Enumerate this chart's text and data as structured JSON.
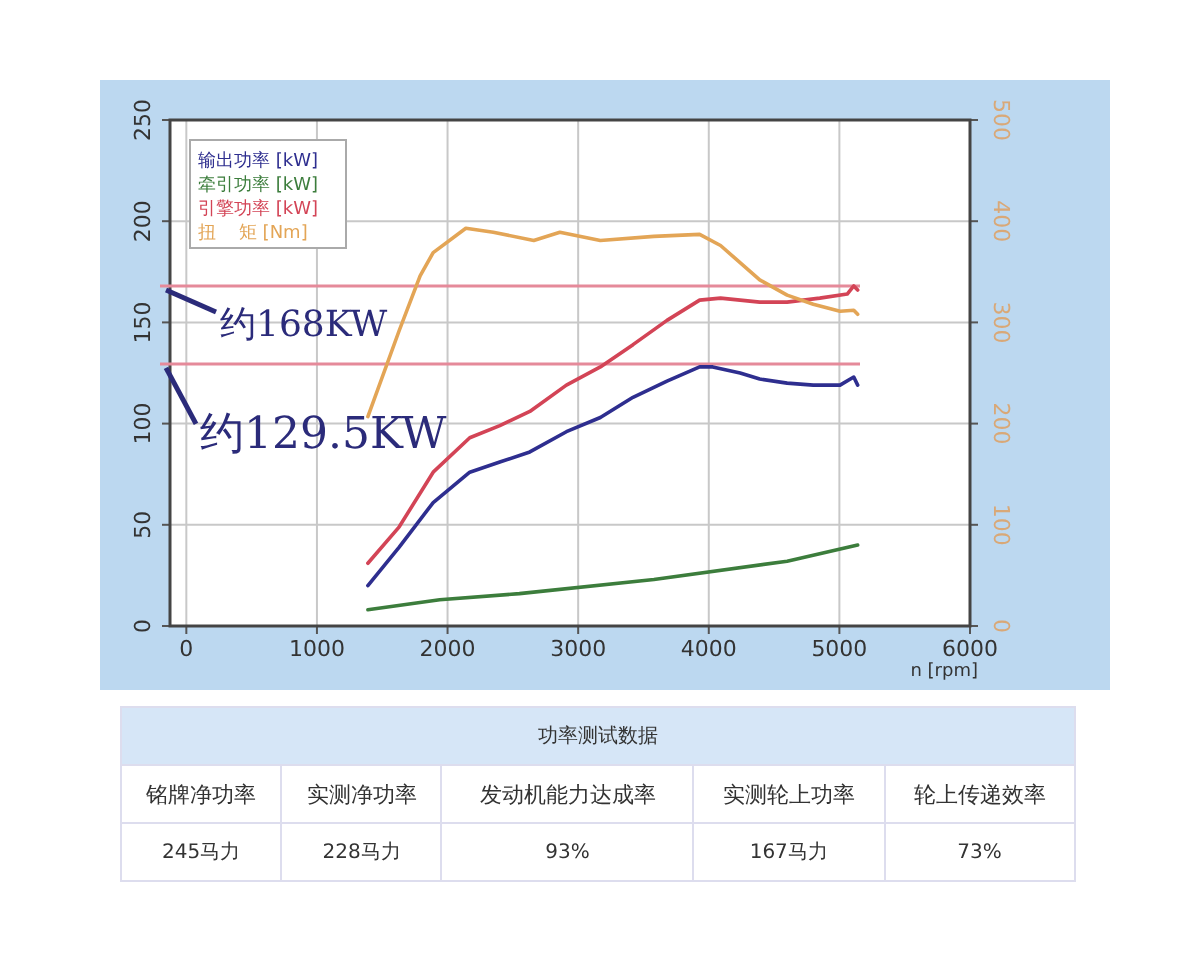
{
  "chart_data": [
    {
      "type": "line",
      "xlabel": "n [rpm]",
      "xlim": [
        -125,
        6000
      ],
      "xticks": [
        0,
        1000,
        2000,
        3000,
        4000,
        5000,
        6000
      ],
      "ylim": [
        0,
        250
      ],
      "yticks": [
        0,
        50,
        100,
        150,
        200,
        250
      ],
      "y2lim": [
        0,
        500
      ],
      "y2ticks": [
        0,
        100,
        200,
        300,
        400,
        500
      ],
      "grid": true,
      "legend": "top left",
      "marker": "none",
      "line_style": "solid",
      "series": [
        {
          "name": "输出功率 [kW]",
          "color": "#2e2e8f",
          "x": [
            1390,
            1630,
            1890,
            2170,
            2400,
            2630,
            2910,
            3170,
            3420,
            3680,
            3930,
            4030,
            4240,
            4390,
            4600,
            4800,
            5005,
            5110,
            5140
          ],
          "values": [
            20,
            39,
            61,
            76,
            81,
            86,
            96,
            103,
            113,
            121,
            128,
            128,
            125,
            122,
            120,
            119,
            119,
            123,
            119
          ]
        },
        {
          "name": "牵引功率 [kW]",
          "color": "#3c7d3c",
          "x": [
            1390,
            1940,
            2550,
            3580,
            4600,
            5140
          ],
          "values": [
            8,
            13,
            16,
            23,
            32,
            40
          ]
        },
        {
          "name": "引擎功率 [kW]",
          "color": "#d34456",
          "x": [
            1390,
            1630,
            1890,
            2170,
            2400,
            2630,
            2910,
            3170,
            3420,
            3680,
            3930,
            4090,
            4390,
            4600,
            4850,
            5060,
            5110,
            5140
          ],
          "values": [
            31,
            49,
            76,
            93,
            99,
            106,
            119,
            128,
            139,
            151,
            161,
            162,
            160,
            160,
            162,
            164,
            168,
            166
          ]
        },
        {
          "name": "扭    矩 [Nm]",
          "color": "#e3a556",
          "axis": "y2",
          "x": [
            1390,
            1630,
            1790,
            1890,
            2140,
            2350,
            2660,
            2860,
            3170,
            3580,
            3930,
            4090,
            4390,
            4600,
            4800,
            5005,
            5110,
            5140
          ],
          "values": [
            207,
            292,
            346,
            369,
            393,
            389,
            381,
            389,
            381,
            385,
            387,
            376,
            342,
            327,
            318,
            311,
            312,
            308
          ]
        }
      ],
      "ref_lines": [
        {
          "axis": "y",
          "value": 168,
          "label": "约168KW",
          "color": "#e58a9a"
        },
        {
          "axis": "y",
          "value": 129.5,
          "label": "约129.5KW",
          "color": "#e58a9a"
        }
      ]
    },
    {
      "type": "other",
      "title": "功率测试数据",
      "annotations": [
        "铭牌净功率",
        "实测净功率",
        "发动机能力达成率",
        "实测轮上功率",
        "轮上传递效率",
        "245马力",
        "228马力",
        "93%",
        "167马力",
        "73%"
      ]
    }
  ]
}
